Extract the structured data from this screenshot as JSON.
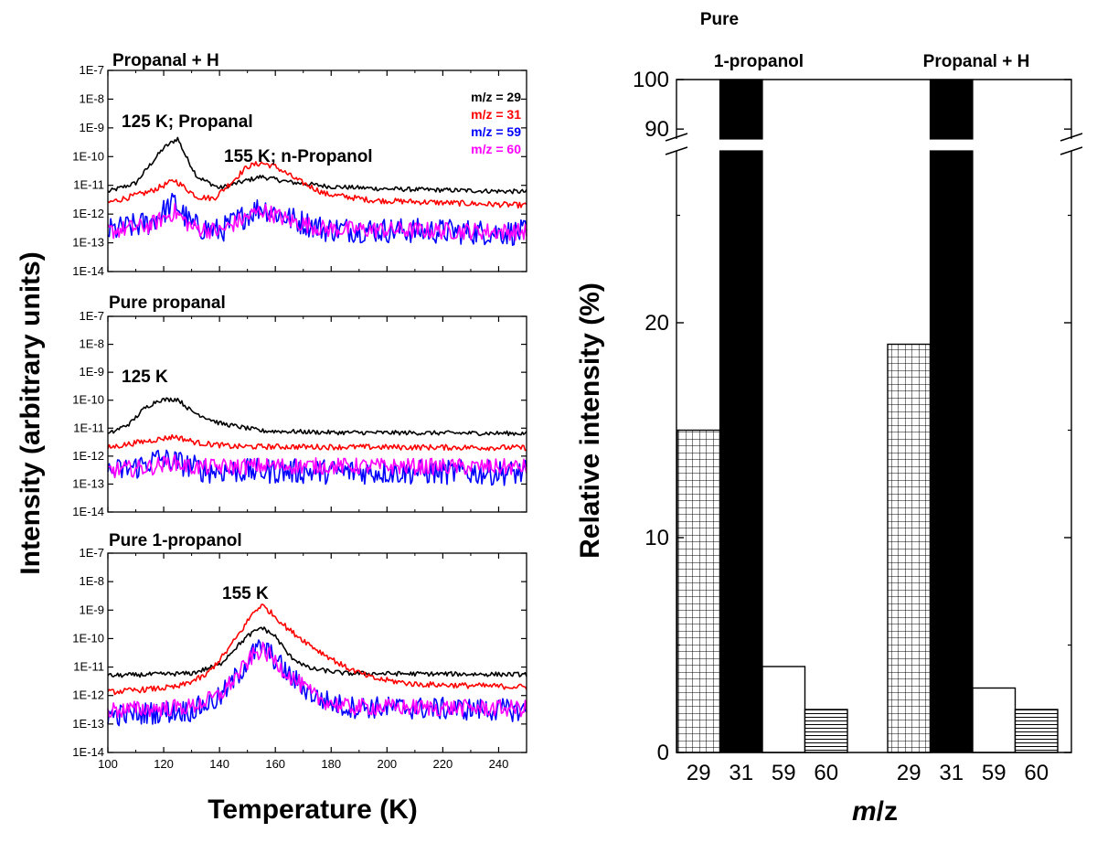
{
  "chart_data": [
    {
      "type": "line",
      "title": "Propanal + H",
      "ylabel": "Intensity (arbitrary units)",
      "xlabel": "Temperature (K)",
      "yscale": "log",
      "xlim": [
        100,
        250
      ],
      "ylim": [
        1e-14,
        1e-07
      ],
      "yticks": [
        "1E-14",
        "1E-13",
        "1E-12",
        "1E-11",
        "1E-10",
        "1E-9",
        "1E-8",
        "1E-7"
      ],
      "annotations": [
        "125 K; Propanal",
        "155 K; n-Propanol"
      ],
      "legend": [
        "m/z = 29",
        "m/z = 31",
        "m/z = 59",
        "m/z = 60"
      ],
      "series": [
        {
          "name": "m/z = 29",
          "color": "#000000",
          "noise": 0.08,
          "points": [
            [
              100,
              6e-12
            ],
            [
              110,
              1.2e-11
            ],
            [
              115,
              5e-11
            ],
            [
              120,
              2e-10
            ],
            [
              125,
              4.3e-10
            ],
            [
              128,
              1e-10
            ],
            [
              132,
              2e-11
            ],
            [
              140,
              8e-12
            ],
            [
              150,
              1.5e-11
            ],
            [
              155,
              2e-11
            ],
            [
              165,
              1.3e-11
            ],
            [
              180,
              9e-12
            ],
            [
              200,
              7.5e-12
            ],
            [
              250,
              6e-12
            ]
          ]
        },
        {
          "name": "m/z = 31",
          "color": "#ff0000",
          "noise": 0.1,
          "points": [
            [
              100,
              2.5e-12
            ],
            [
              115,
              6e-12
            ],
            [
              124,
              1.5e-11
            ],
            [
              132,
              4e-12
            ],
            [
              138,
              3.5e-12
            ],
            [
              145,
              1.5e-11
            ],
            [
              150,
              4.5e-11
            ],
            [
              155,
              6e-11
            ],
            [
              160,
              4.5e-11
            ],
            [
              168,
              1.5e-11
            ],
            [
              178,
              5e-12
            ],
            [
              195,
              3e-12
            ],
            [
              250,
              2e-12
            ]
          ]
        },
        {
          "name": "m/z = 59",
          "color": "#0000ff",
          "noise": 0.45,
          "points": [
            [
              100,
              2.5e-13
            ],
            [
              115,
              5e-13
            ],
            [
              124,
              2.5e-12
            ],
            [
              130,
              4e-13
            ],
            [
              140,
              2.5e-13
            ],
            [
              150,
              1e-12
            ],
            [
              155,
              1.8e-12
            ],
            [
              165,
              7e-13
            ],
            [
              178,
              3e-13
            ],
            [
              250,
              2.2e-13
            ]
          ]
        },
        {
          "name": "m/z = 60",
          "color": "#ff00ff",
          "noise": 0.3,
          "points": [
            [
              100,
              2.5e-13
            ],
            [
              115,
              4e-13
            ],
            [
              124,
              1.2e-12
            ],
            [
              130,
              3.5e-13
            ],
            [
              140,
              2.5e-13
            ],
            [
              150,
              8e-13
            ],
            [
              155,
              1.4e-12
            ],
            [
              165,
              6e-13
            ],
            [
              178,
              3e-13
            ],
            [
              250,
              2.4e-13
            ]
          ]
        }
      ]
    },
    {
      "type": "line",
      "title": "Pure propanal",
      "yscale": "log",
      "xlim": [
        100,
        250
      ],
      "ylim": [
        1e-14,
        1e-07
      ],
      "yticks": [
        "1E-14",
        "1E-13",
        "1E-12",
        "1E-11",
        "1E-10",
        "1E-9",
        "1E-8",
        "1E-7"
      ],
      "annotations": [
        "125 K"
      ],
      "series": [
        {
          "name": "m/z = 29",
          "color": "#000000",
          "noise": 0.08,
          "points": [
            [
              100,
              6e-12
            ],
            [
              108,
              1.5e-11
            ],
            [
              113,
              5e-11
            ],
            [
              118,
              1e-10
            ],
            [
              125,
              1.1e-10
            ],
            [
              130,
              4e-11
            ],
            [
              140,
              1.5e-11
            ],
            [
              155,
              8e-12
            ],
            [
              180,
              7e-12
            ],
            [
              250,
              6.5e-12
            ]
          ]
        },
        {
          "name": "m/z = 31",
          "color": "#ff0000",
          "noise": 0.1,
          "points": [
            [
              100,
              2e-12
            ],
            [
              110,
              3e-12
            ],
            [
              118,
              4e-12
            ],
            [
              124,
              5e-12
            ],
            [
              132,
              3e-12
            ],
            [
              145,
              2.2e-12
            ],
            [
              250,
              2e-12
            ]
          ]
        },
        {
          "name": "m/z = 59",
          "color": "#0000ff",
          "noise": 0.45,
          "points": [
            [
              100,
              2.5e-13
            ],
            [
              110,
              4e-13
            ],
            [
              118,
              8e-13
            ],
            [
              125,
              6e-13
            ],
            [
              135,
              3e-13
            ],
            [
              250,
              2.5e-13
            ]
          ]
        },
        {
          "name": "m/z = 60",
          "color": "#ff00ff",
          "noise": 0.3,
          "points": [
            [
              100,
              3e-13
            ],
            [
              115,
              4e-13
            ],
            [
              123,
              6e-13
            ],
            [
              130,
              4e-13
            ],
            [
              160,
              4.5e-13
            ],
            [
              250,
              4e-13
            ]
          ]
        }
      ]
    },
    {
      "type": "line",
      "title": "Pure 1-propanol",
      "yscale": "log",
      "xlim": [
        100,
        250
      ],
      "ylim": [
        1e-14,
        1e-07
      ],
      "yticks": [
        "1E-14",
        "1E-13",
        "1E-12",
        "1E-11",
        "1E-10",
        "1E-9",
        "1E-8",
        "1E-7"
      ],
      "xticks": [
        "100",
        "120",
        "140",
        "160",
        "180",
        "200",
        "220",
        "240"
      ],
      "annotations": [
        "155 K"
      ],
      "series": [
        {
          "name": "m/z = 29",
          "color": "#000000",
          "noise": 0.08,
          "points": [
            [
              100,
              5e-12
            ],
            [
              130,
              6e-12
            ],
            [
              140,
              1.2e-11
            ],
            [
              145,
              4e-11
            ],
            [
              150,
              1.2e-10
            ],
            [
              155,
              2.5e-10
            ],
            [
              160,
              1.2e-10
            ],
            [
              165,
              2.5e-11
            ],
            [
              172,
              9e-12
            ],
            [
              185,
              6e-12
            ],
            [
              250,
              5.5e-12
            ]
          ]
        },
        {
          "name": "m/z = 31",
          "color": "#ff0000",
          "noise": 0.1,
          "points": [
            [
              100,
              1.3e-12
            ],
            [
              125,
              2e-12
            ],
            [
              135,
              5e-12
            ],
            [
              142,
              3e-11
            ],
            [
              148,
              2e-10
            ],
            [
              152,
              8e-10
            ],
            [
              155,
              1.5e-09
            ],
            [
              158,
              9e-10
            ],
            [
              165,
              2e-10
            ],
            [
              175,
              4e-11
            ],
            [
              185,
              1e-11
            ],
            [
              195,
              4e-12
            ],
            [
              210,
              2.5e-12
            ],
            [
              250,
              2e-12
            ]
          ]
        },
        {
          "name": "m/z = 59",
          "color": "#0000ff",
          "noise": 0.4,
          "points": [
            [
              100,
              2e-13
            ],
            [
              130,
              3e-13
            ],
            [
              140,
              8e-13
            ],
            [
              147,
              6e-12
            ],
            [
              152,
              3e-11
            ],
            [
              155,
              5e-11
            ],
            [
              158,
              3e-11
            ],
            [
              165,
              5e-12
            ],
            [
              175,
              8e-13
            ],
            [
              185,
              4e-13
            ],
            [
              250,
              3e-13
            ]
          ]
        },
        {
          "name": "m/z = 60",
          "color": "#ff00ff",
          "noise": 0.3,
          "points": [
            [
              100,
              3e-13
            ],
            [
              130,
              4e-13
            ],
            [
              140,
              1e-12
            ],
            [
              147,
              6e-12
            ],
            [
              152,
              2.5e-11
            ],
            [
              155,
              4e-11
            ],
            [
              158,
              2.5e-11
            ],
            [
              165,
              5e-12
            ],
            [
              175,
              8e-13
            ],
            [
              185,
              4e-13
            ],
            [
              250,
              3.5e-13
            ]
          ]
        }
      ]
    },
    {
      "type": "bar",
      "ylabel": "Relative intensity (%)",
      "xlabel_prefix": "m",
      "xlabel_suffix": "/z",
      "yticks": [
        "0",
        "10",
        "20",
        "90",
        "100"
      ],
      "ylim_lower": [
        0,
        28
      ],
      "ylim_upper": [
        88,
        100
      ],
      "groups": [
        {
          "label_line1": "Pure",
          "label_line2": "1-propanol",
          "categories": [
            "29",
            "31",
            "59",
            "60"
          ],
          "values": [
            15,
            100,
            4,
            2
          ],
          "patterns": [
            "grid",
            "solid",
            "open",
            "hlines"
          ]
        },
        {
          "label_line1": "",
          "label_line2": "Propanal + H",
          "categories": [
            "29",
            "31",
            "59",
            "60"
          ],
          "values": [
            19,
            100,
            3,
            2
          ],
          "patterns": [
            "grid",
            "solid",
            "open",
            "hlines"
          ]
        }
      ]
    }
  ]
}
